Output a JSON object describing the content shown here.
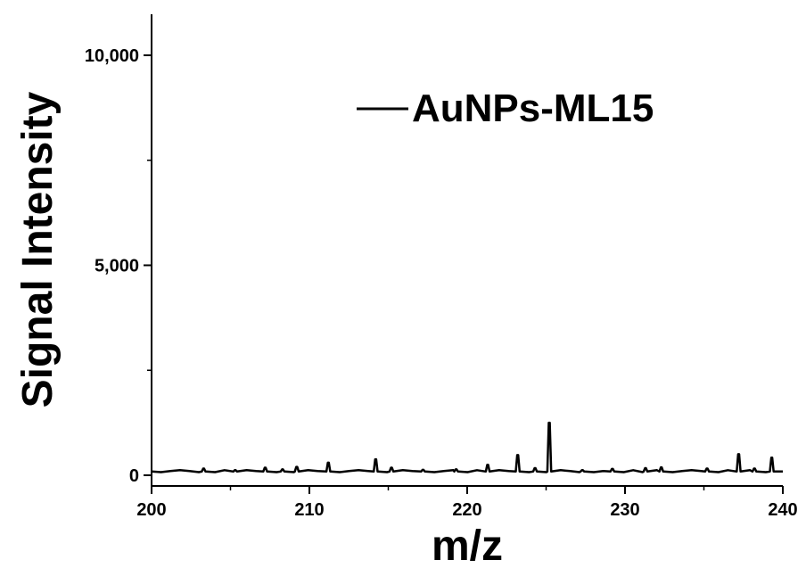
{
  "chart_data": {
    "type": "line",
    "title": "",
    "xlabel": "m/z",
    "ylabel": "Signal Intensity",
    "xlim": [
      200,
      240
    ],
    "ylim": [
      0,
      10800
    ],
    "x_ticks": [
      200,
      210,
      220,
      230,
      240
    ],
    "x_tick_labels": [
      "200",
      "210",
      "220",
      "230",
      "240"
    ],
    "y_ticks": [
      0,
      5000,
      10000
    ],
    "y_tick_labels": [
      "0",
      "5,000",
      "10,000"
    ],
    "grid": false,
    "legend_position": "top-right",
    "series": [
      {
        "name": "AuNPs-ML15",
        "color": "#000000",
        "baseline": 90,
        "peaks": [
          {
            "x": 203.3,
            "y": 160
          },
          {
            "x": 205.3,
            "y": 120
          },
          {
            "x": 207.2,
            "y": 180
          },
          {
            "x": 208.3,
            "y": 140
          },
          {
            "x": 209.2,
            "y": 200
          },
          {
            "x": 211.2,
            "y": 300
          },
          {
            "x": 214.2,
            "y": 380
          },
          {
            "x": 215.2,
            "y": 180
          },
          {
            "x": 217.2,
            "y": 130
          },
          {
            "x": 219.3,
            "y": 140
          },
          {
            "x": 221.3,
            "y": 250
          },
          {
            "x": 223.2,
            "y": 480
          },
          {
            "x": 224.3,
            "y": 170
          },
          {
            "x": 225.2,
            "y": 1250
          },
          {
            "x": 227.3,
            "y": 120
          },
          {
            "x": 229.2,
            "y": 150
          },
          {
            "x": 231.3,
            "y": 170
          },
          {
            "x": 232.3,
            "y": 190
          },
          {
            "x": 235.2,
            "y": 160
          },
          {
            "x": 237.2,
            "y": 500
          },
          {
            "x": 238.2,
            "y": 160
          },
          {
            "x": 239.3,
            "y": 420
          }
        ]
      }
    ]
  }
}
